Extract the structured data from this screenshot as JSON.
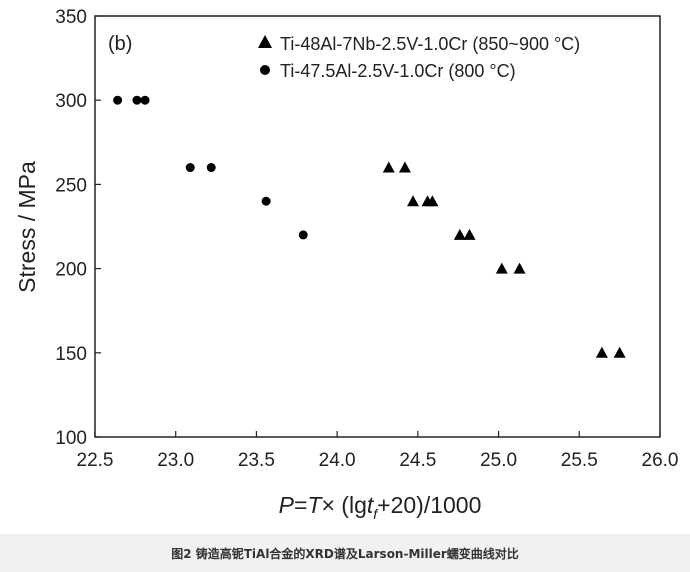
{
  "chart_data": {
    "type": "scatter",
    "panel_label": "(b)",
    "xlabel": {
      "italic_p": "P",
      "eq1": "=",
      "italic_t": "T",
      "times": "×",
      "open": " (lg",
      "italic_t2": "t",
      "sub_f": "f",
      "close": "+20)/1000"
    },
    "ylabel": "Stress / MPa",
    "xlim": [
      22.5,
      26.0
    ],
    "ylim": [
      100,
      350
    ],
    "xticks": [
      "22.5",
      "23.0",
      "23.5",
      "24.0",
      "24.5",
      "25.0",
      "25.5",
      "26.0"
    ],
    "yticks": [
      "100",
      "150",
      "200",
      "250",
      "300",
      "350"
    ],
    "legend_position": "top-right",
    "series": [
      {
        "name": "Ti-48Al-7Nb-2.5V-1.0Cr (850~900 °C)",
        "marker": "triangle",
        "color": "#000000",
        "x": [
          24.32,
          24.42,
          24.47,
          24.56,
          24.59,
          24.76,
          24.82,
          25.02,
          25.13,
          25.64,
          25.75
        ],
        "y": [
          260,
          260,
          240,
          240,
          240,
          220,
          220,
          200,
          200,
          150,
          150
        ]
      },
      {
        "name": "Ti-47.5Al-2.5V-1.0Cr (800 °C)",
        "marker": "circle",
        "color": "#000000",
        "x": [
          22.64,
          22.76,
          22.81,
          23.09,
          23.22,
          23.56,
          23.79
        ],
        "y": [
          300,
          300,
          300,
          260,
          260,
          240,
          220
        ]
      }
    ]
  },
  "caption": "图2   铸造高铌TiAl合金的XRD谱及Larson-Miller蠕变曲线对比"
}
